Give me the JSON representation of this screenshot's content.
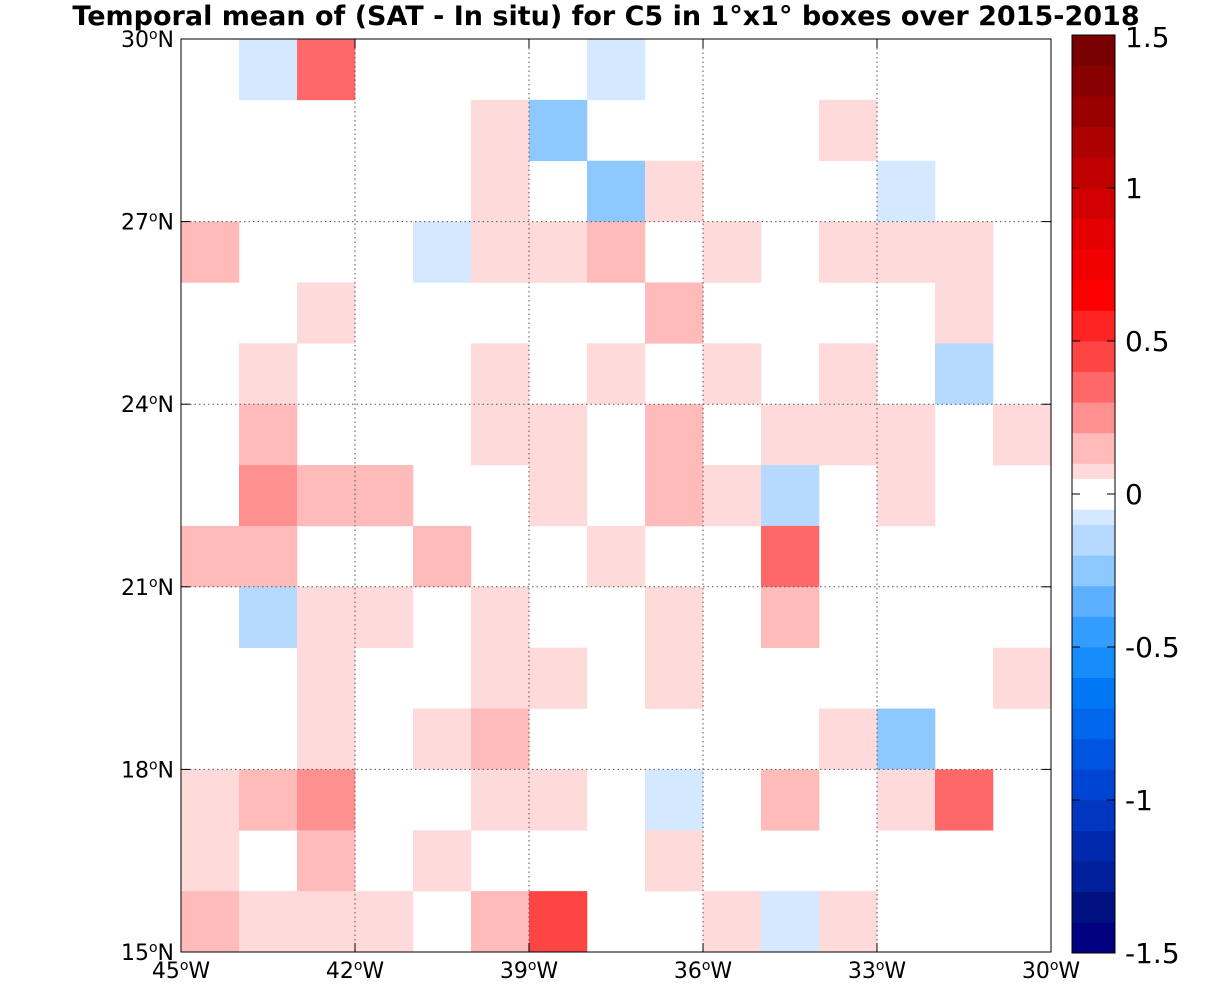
{
  "chart_data": {
    "type": "heatmap",
    "title": "Temporal mean of (SAT - In situ) for C5 in 1°x1° boxes over 2015-2018",
    "x_ticks": [
      {
        "value": -45,
        "deg": "45",
        "sup": "o",
        "hemi": "W"
      },
      {
        "value": -42,
        "deg": "42",
        "sup": "o",
        "hemi": "W"
      },
      {
        "value": -39,
        "deg": "39",
        "sup": "o",
        "hemi": "W"
      },
      {
        "value": -36,
        "deg": "36",
        "sup": "o",
        "hemi": "W"
      },
      {
        "value": -33,
        "deg": "33",
        "sup": "o",
        "hemi": "W"
      },
      {
        "value": -30,
        "deg": "30",
        "sup": "o",
        "hemi": "W"
      }
    ],
    "y_ticks": [
      {
        "value": 15,
        "deg": "15",
        "sup": "o",
        "hemi": "N"
      },
      {
        "value": 18,
        "deg": "18",
        "sup": "o",
        "hemi": "N"
      },
      {
        "value": 21,
        "deg": "21",
        "sup": "o",
        "hemi": "N"
      },
      {
        "value": 24,
        "deg": "24",
        "sup": "o",
        "hemi": "N"
      },
      {
        "value": 27,
        "deg": "27",
        "sup": "o",
        "hemi": "N"
      },
      {
        "value": 30,
        "deg": "30",
        "sup": "o",
        "hemi": "N"
      }
    ],
    "xlim": [
      -45,
      -30
    ],
    "ylim": [
      15,
      30
    ],
    "grid": true,
    "colorbar": {
      "range": [
        -1.5,
        1.5
      ],
      "step": 0.1,
      "tick_values": [
        -1.5,
        -1,
        -0.5,
        0,
        0.5,
        1,
        1.5
      ],
      "tick_labels": [
        "-1.5",
        "-1",
        "-0.5",
        "0",
        "0.5",
        "1",
        "1.5"
      ],
      "neg_colors": [
        "#000080",
        "#001080",
        "#001f9a",
        "#0029ad",
        "#0036c0",
        "#0044d3",
        "#0055e0",
        "#0066ec",
        "#0078f5",
        "#168cfa",
        "#329cff",
        "#5cb0ff",
        "#8dc8ff",
        "#b5d9ff",
        "#d4e8ff"
      ],
      "zero_color": "#ffffff",
      "pos_colors": [
        "#ffdada",
        "#ffbaba",
        "#ff9090",
        "#ff6868",
        "#ff4444",
        "#ff2424",
        "#ff0000",
        "#f00000",
        "#e40000",
        "#d20000",
        "#c00000",
        "#ad0000",
        "#9a0000",
        "#880000",
        "#780000"
      ]
    },
    "lon_start": -45,
    "lat_top": 30,
    "cell_deg": 1,
    "grid_values": [
      [
        0,
        -0.1,
        0.4,
        0,
        0,
        0,
        0,
        -0.1,
        0,
        0,
        0,
        0,
        0,
        0,
        0
      ],
      [
        0,
        0,
        0,
        0,
        0,
        0.1,
        -0.3,
        0,
        0,
        0,
        0,
        0.1,
        0,
        0,
        0
      ],
      [
        0,
        0,
        0,
        0,
        0,
        0.1,
        0,
        -0.3,
        0.1,
        0,
        0,
        0,
        -0.1,
        0,
        0
      ],
      [
        0.2,
        0,
        0,
        0,
        -0.1,
        0.1,
        0.1,
        0.2,
        0,
        0.1,
        0,
        0.1,
        0.1,
        0.1,
        0
      ],
      [
        0,
        0,
        0.1,
        0,
        0,
        0,
        0,
        0,
        0.2,
        0,
        0,
        0,
        0,
        0.1,
        0
      ],
      [
        0,
        0.1,
        0,
        0,
        0,
        0.1,
        0,
        0.1,
        0,
        0.1,
        0,
        0.1,
        0,
        -0.2,
        0
      ],
      [
        0,
        0.2,
        0,
        0,
        0,
        0.1,
        0.1,
        0,
        0.2,
        0,
        0.1,
        0.1,
        0.1,
        0,
        0.1
      ],
      [
        0,
        0.3,
        0.2,
        0.2,
        0,
        0,
        0.1,
        0,
        0.2,
        0.1,
        -0.2,
        0,
        0.1,
        0,
        0
      ],
      [
        0.2,
        0.2,
        0,
        0,
        0.2,
        0,
        0,
        0.1,
        0,
        0,
        0.4,
        0,
        0,
        0,
        0
      ],
      [
        0,
        -0.2,
        0.1,
        0.1,
        0,
        0.1,
        0,
        0,
        0.1,
        0,
        0.2,
        0,
        0,
        0,
        0
      ],
      [
        0,
        0,
        0.1,
        0,
        0,
        0.1,
        0.1,
        0,
        0.1,
        0,
        0,
        0,
        0,
        0,
        0.1
      ],
      [
        0,
        0,
        0.1,
        0,
        0.1,
        0.2,
        0,
        0,
        0,
        0,
        0,
        0.1,
        -0.3,
        0,
        0
      ],
      [
        0.1,
        0.2,
        0.3,
        0,
        0,
        0.1,
        0.1,
        0,
        -0.1,
        0,
        0.2,
        0,
        0.1,
        0.4,
        0
      ],
      [
        0.1,
        0,
        0.2,
        0,
        0.1,
        0,
        0,
        0,
        0.1,
        0,
        0,
        0,
        0,
        0,
        0
      ],
      [
        0.2,
        0.1,
        0.1,
        0.1,
        0,
        0.2,
        0.5,
        0,
        0,
        0.1,
        -0.1,
        0.1,
        0,
        0,
        0
      ]
    ]
  }
}
